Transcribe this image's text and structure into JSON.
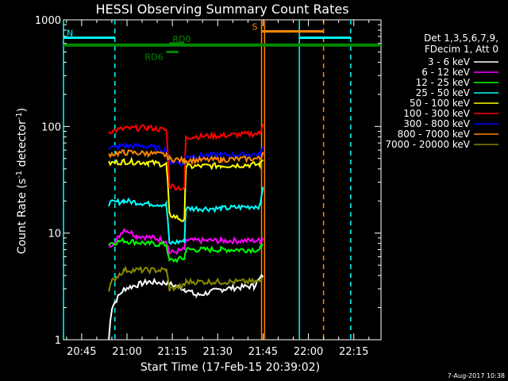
{
  "chart_data": {
    "type": "line",
    "title": "HESSI Observing Summary Count Rates",
    "xlabel": "Start Time (17-Feb-15 20:39:02)",
    "ylabel_main": "Count Rate (s",
    "ylabel_sup1": "-1",
    "ylabel_mid": " detector",
    "ylabel_sup2": "-1",
    "ylabel_end": ")",
    "y_scale": "log",
    "ylim": [
      1,
      1000
    ],
    "xlim_min": [
      0,
      105
    ],
    "x_tick_labels": [
      "20:45",
      "21:00",
      "21:15",
      "21:30",
      "21:45",
      "22:00",
      "22:15"
    ],
    "x_tick_minutes": [
      6,
      21,
      36,
      51,
      66,
      81,
      96
    ],
    "y_ticks": [
      {
        "value": 1,
        "label": "1"
      },
      {
        "value": 10,
        "label": "10"
      },
      {
        "value": 100,
        "label": "100"
      },
      {
        "value": 1000,
        "label": "1000"
      }
    ],
    "legend_header": [
      "Det 1,3,5,6,7,9,",
      "FDecim 1, Att 0"
    ],
    "series": [
      {
        "name": "3 - 6 keV",
        "color": "#ffffff",
        "segments": [
          [
            15,
            1
          ],
          [
            16,
            2
          ],
          [
            20,
            3
          ],
          [
            28,
            3.5
          ],
          [
            34,
            3.4
          ],
          [
            40,
            3
          ],
          [
            44,
            2.6
          ],
          [
            53,
            3
          ],
          [
            63,
            3.2
          ],
          [
            66,
            4
          ]
        ]
      },
      {
        "name": "6 - 12 keV",
        "color": "#ff00ff",
        "segments": [
          [
            15,
            7.5
          ],
          [
            18,
            9
          ],
          [
            20,
            11
          ],
          [
            24,
            9.5
          ],
          [
            30,
            9
          ],
          [
            34,
            8.5
          ],
          [
            35,
            6.5
          ],
          [
            40,
            7
          ],
          [
            40.5,
            8.5
          ],
          [
            52,
            8.5
          ],
          [
            65,
            8.5
          ],
          [
            66,
            9
          ]
        ]
      },
      {
        "name": "12 - 25 keV",
        "color": "#00ff00",
        "segments": [
          [
            15,
            8
          ],
          [
            20,
            8.5
          ],
          [
            28,
            8
          ],
          [
            34,
            7.8
          ],
          [
            35,
            5.5
          ],
          [
            40,
            5.8
          ],
          [
            40.5,
            7
          ],
          [
            52,
            7
          ],
          [
            65,
            7
          ],
          [
            66,
            8
          ]
        ]
      },
      {
        "name": "25 - 50 keV",
        "color": "#00ffff",
        "segments": [
          [
            15,
            19
          ],
          [
            20,
            20
          ],
          [
            28,
            19
          ],
          [
            34,
            18.5
          ],
          [
            35,
            8
          ],
          [
            40,
            8.5
          ],
          [
            40.5,
            17
          ],
          [
            52,
            17
          ],
          [
            65,
            18
          ],
          [
            66,
            28
          ]
        ]
      },
      {
        "name": "50 - 100 keV",
        "color": "#ffff00",
        "segments": [
          [
            15,
            45
          ],
          [
            20,
            47
          ],
          [
            28,
            46
          ],
          [
            34,
            44
          ],
          [
            35,
            15
          ],
          [
            40,
            13
          ],
          [
            40.5,
            42
          ],
          [
            52,
            43
          ],
          [
            65,
            44
          ],
          [
            66,
            50
          ]
        ]
      },
      {
        "name": "100 - 300 keV",
        "color": "#ff0000",
        "segments": [
          [
            15,
            90
          ],
          [
            20,
            95
          ],
          [
            28,
            98
          ],
          [
            34,
            92
          ],
          [
            35,
            28
          ],
          [
            40,
            26
          ],
          [
            40.5,
            80
          ],
          [
            52,
            82
          ],
          [
            65,
            86
          ],
          [
            66,
            110
          ]
        ]
      },
      {
        "name": "300 - 800 keV",
        "color": "#0000ff",
        "segments": [
          [
            15,
            62
          ],
          [
            20,
            66
          ],
          [
            28,
            65
          ],
          [
            34,
            60
          ],
          [
            35,
            47
          ],
          [
            40,
            45
          ],
          [
            40.5,
            53
          ],
          [
            52,
            54
          ],
          [
            65,
            55
          ],
          [
            66,
            62
          ]
        ]
      },
      {
        "name": "800 - 7000 keV",
        "color": "#ff8800",
        "segments": [
          [
            15,
            55
          ],
          [
            20,
            57
          ],
          [
            28,
            56
          ],
          [
            34,
            54
          ],
          [
            35,
            50
          ],
          [
            40,
            48
          ],
          [
            40.5,
            48
          ],
          [
            52,
            49
          ],
          [
            65,
            50
          ],
          [
            66,
            58
          ]
        ]
      },
      {
        "name": "7000 - 20000 keV",
        "color": "#888800",
        "segments": [
          [
            15,
            3
          ],
          [
            16,
            3.5
          ],
          [
            20,
            4.5
          ],
          [
            34,
            4.5
          ],
          [
            35,
            3
          ],
          [
            40,
            3.2
          ],
          [
            40.5,
            3.5
          ],
          [
            52,
            3.5
          ],
          [
            65,
            3.5
          ],
          [
            66,
            4
          ]
        ]
      }
    ],
    "flag_bars": [
      {
        "label": "N",
        "color": "#00ffff",
        "level": 680,
        "from": 0,
        "to": 17
      },
      {
        "label": "",
        "color": "#00ffff",
        "level": 680,
        "from": 78,
        "to": 95
      },
      {
        "label": "S",
        "color": "#ff8800",
        "level": 780,
        "from": 65.5,
        "to": 86
      },
      {
        "label": "RD0",
        "color": "#008800",
        "level": 600,
        "from": 35,
        "to": 40
      },
      {
        "label": "RD6",
        "color": "#008800",
        "level": 500,
        "from": 34,
        "to": 38
      }
    ],
    "saa_line_level": 580,
    "vertical_lines": [
      {
        "minute": 0,
        "color": "#00ffff",
        "style": "solid"
      },
      {
        "minute": 17,
        "color": "#00ffff",
        "style": "dashed"
      },
      {
        "minute": 65.5,
        "color": "#ff8800",
        "style": "solid"
      },
      {
        "minute": 66.5,
        "color": "#ff8800",
        "style": "solid"
      },
      {
        "minute": 78,
        "color": "#00ffff",
        "style": "solid"
      },
      {
        "minute": 86,
        "color": "#ff8800",
        "style": "dashed"
      },
      {
        "minute": 95,
        "color": "#00ffff",
        "style": "dashed"
      }
    ]
  },
  "footer": {
    "timestamp": "7-Aug-2017 10:38"
  }
}
